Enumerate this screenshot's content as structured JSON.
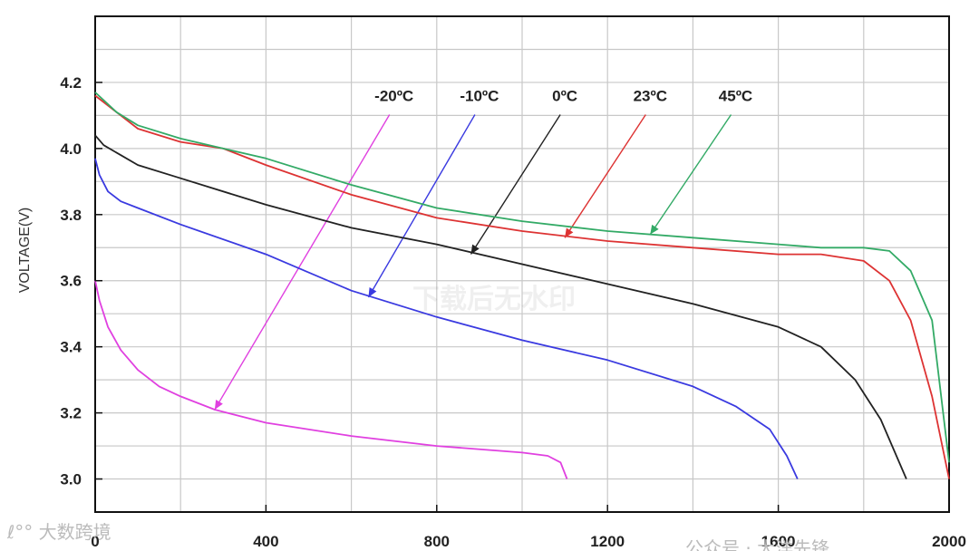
{
  "chart_data": {
    "type": "line",
    "title": "",
    "xlabel": "",
    "ylabel": "VOLTAGE(V)",
    "xlim": [
      0,
      2000
    ],
    "ylim": [
      2.9,
      4.4
    ],
    "x_ticks": [
      "0",
      "400",
      "800",
      "1200",
      "1600",
      "2000"
    ],
    "y_ticks": [
      "3.0",
      "3.2",
      "3.4",
      "3.6",
      "3.8",
      "4.0",
      "4.2"
    ],
    "grid": true,
    "series": [
      {
        "name": "-20ºC",
        "color": "#e040e0",
        "x": [
          0,
          10,
          30,
          60,
          100,
          150,
          200,
          280,
          400,
          600,
          800,
          1000,
          1060,
          1090,
          1105
        ],
        "y": [
          3.6,
          3.54,
          3.46,
          3.39,
          3.33,
          3.28,
          3.25,
          3.21,
          3.17,
          3.13,
          3.1,
          3.08,
          3.07,
          3.05,
          3.0
        ],
        "label_x": 700,
        "arrow_tip": [
          280,
          3.21
        ]
      },
      {
        "name": "-10ºC",
        "color": "#3a3ae0",
        "x": [
          0,
          10,
          30,
          60,
          100,
          200,
          400,
          600,
          800,
          1000,
          1200,
          1400,
          1500,
          1580,
          1620,
          1645
        ],
        "y": [
          3.97,
          3.92,
          3.87,
          3.84,
          3.82,
          3.77,
          3.68,
          3.57,
          3.49,
          3.42,
          3.36,
          3.28,
          3.22,
          3.15,
          3.07,
          3.0
        ],
        "label_x": 900,
        "arrow_tip": [
          640,
          3.55
        ]
      },
      {
        "name": "0ºC",
        "color": "#222222",
        "x": [
          0,
          20,
          60,
          100,
          200,
          400,
          600,
          800,
          1000,
          1200,
          1400,
          1600,
          1700,
          1780,
          1840,
          1900
        ],
        "y": [
          4.04,
          4.01,
          3.98,
          3.95,
          3.91,
          3.83,
          3.76,
          3.71,
          3.65,
          3.59,
          3.53,
          3.46,
          3.4,
          3.3,
          3.18,
          3.0
        ],
        "label_x": 1100,
        "arrow_tip": [
          880,
          3.68
        ]
      },
      {
        "name": "23ºC",
        "color": "#dd3333",
        "x": [
          0,
          50,
          100,
          200,
          300,
          400,
          600,
          800,
          1000,
          1200,
          1400,
          1600,
          1700,
          1800,
          1860,
          1910,
          1960,
          2000
        ],
        "y": [
          4.16,
          4.11,
          4.06,
          4.02,
          4.0,
          3.95,
          3.86,
          3.79,
          3.75,
          3.72,
          3.7,
          3.68,
          3.68,
          3.66,
          3.6,
          3.48,
          3.25,
          3.0
        ],
        "label_x": 1300,
        "arrow_tip": [
          1100,
          3.73
        ]
      },
      {
        "name": "45ºC",
        "color": "#33aa66",
        "x": [
          0,
          50,
          100,
          200,
          300,
          400,
          600,
          800,
          1000,
          1200,
          1400,
          1600,
          1700,
          1800,
          1860,
          1910,
          1960,
          2000
        ],
        "y": [
          4.17,
          4.11,
          4.07,
          4.03,
          4.0,
          3.97,
          3.89,
          3.82,
          3.78,
          3.75,
          3.73,
          3.71,
          3.7,
          3.7,
          3.69,
          3.63,
          3.48,
          3.05
        ],
        "label_x": 1500,
        "arrow_tip": [
          1300,
          3.74
        ]
      }
    ]
  },
  "watermark": "下载后无水印",
  "footer": {
    "left_brand": "ℓ°° 大数跨境",
    "right_brand": "公众号 · 大洋先锋"
  }
}
